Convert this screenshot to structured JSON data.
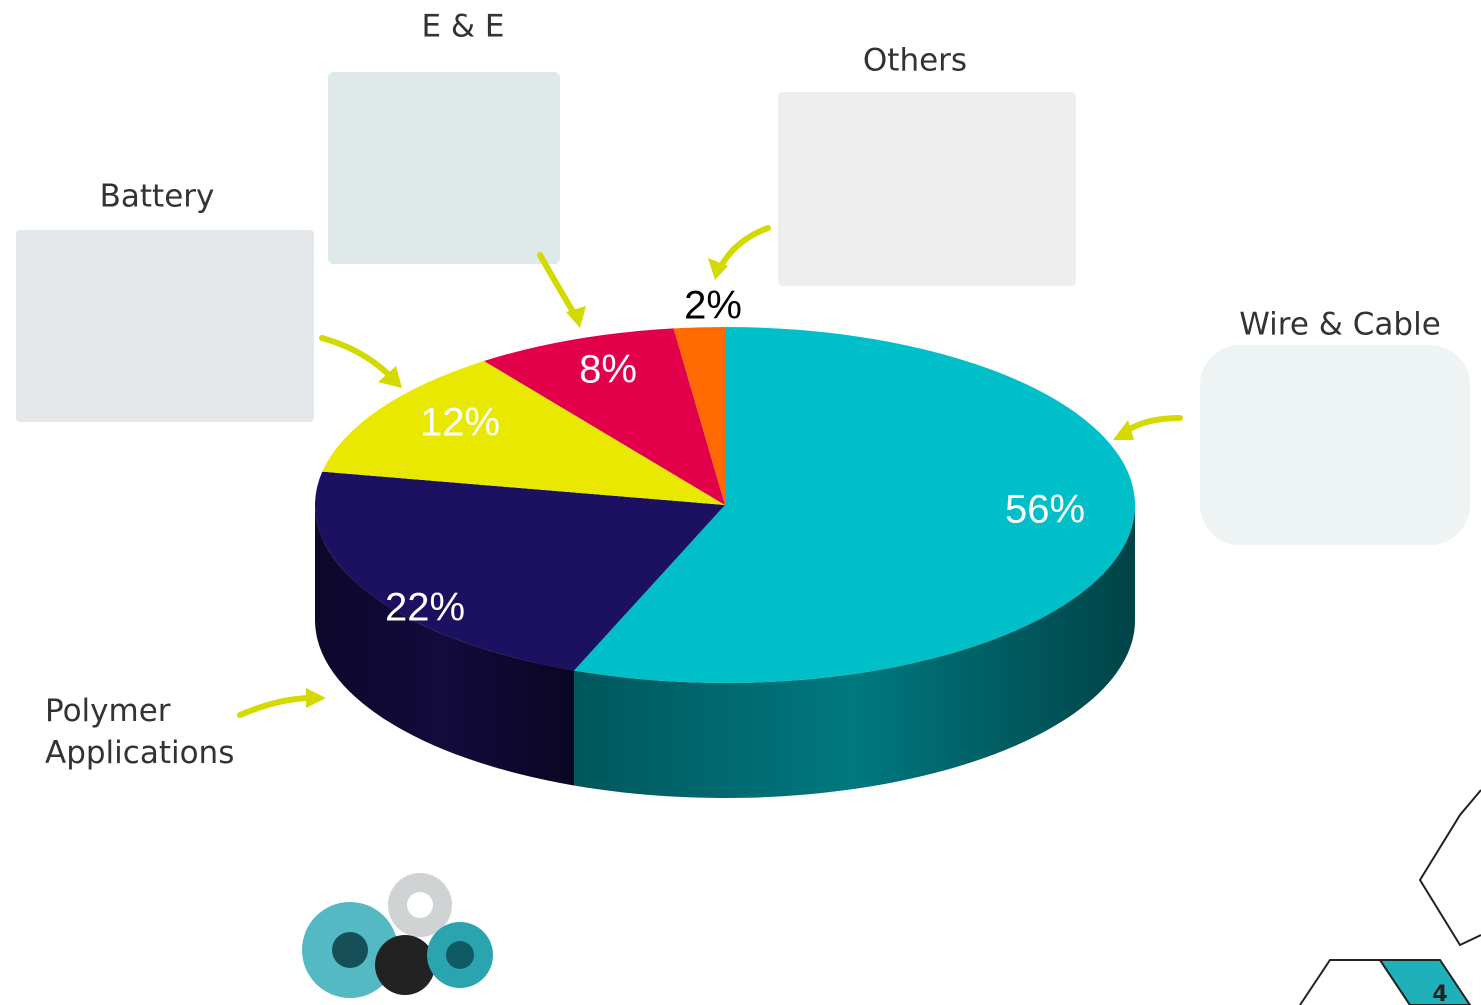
{
  "chart_data": {
    "type": "pie3d",
    "categories": [
      "Wire & Cable",
      "Polymer Applications",
      "Battery",
      "E & E",
      "Others"
    ],
    "values": [
      56,
      22,
      12,
      8,
      2
    ],
    "value_labels": [
      "56%",
      "22%",
      "12%",
      "8%",
      "2%"
    ],
    "colors": [
      "#00bfc9",
      "#1c1160",
      "#e8e800",
      "#e3004b",
      "#ff6a00"
    ]
  },
  "page_number": "4"
}
